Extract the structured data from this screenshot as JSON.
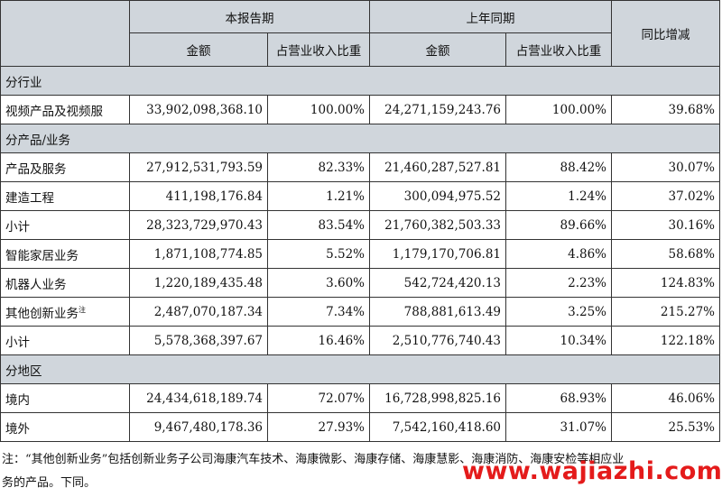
{
  "header": {
    "current_period": "本报告期",
    "prior_period": "上年同期",
    "yoy_change": "同比增减",
    "amount": "金额",
    "ratio": "占营业收入比重"
  },
  "sections": [
    {
      "title": "分行业",
      "rows": [
        {
          "label": "视频产品及视频服",
          "cur_amount": "33,902,098,368.10",
          "cur_ratio": "100.00%",
          "prev_amount": "24,271,159,243.76",
          "prev_ratio": "100.00%",
          "change": "39.68%"
        }
      ]
    },
    {
      "title": "分产品/业务",
      "rows": [
        {
          "label": "产品及服务",
          "cur_amount": "27,912,531,793.59",
          "cur_ratio": "82.33%",
          "prev_amount": "21,460,287,527.81",
          "prev_ratio": "88.42%",
          "change": "30.07%"
        },
        {
          "label": "建造工程",
          "cur_amount": "411,198,176.84",
          "cur_ratio": "1.21%",
          "prev_amount": "300,094,975.52",
          "prev_ratio": "1.24%",
          "change": "37.02%"
        },
        {
          "label": "小计",
          "cur_amount": "28,323,729,970.43",
          "cur_ratio": "83.54%",
          "prev_amount": "21,760,382,503.33",
          "prev_ratio": "89.66%",
          "change": "30.16%"
        },
        {
          "label": "智能家居业务",
          "cur_amount": "1,871,108,774.85",
          "cur_ratio": "5.52%",
          "prev_amount": "1,179,170,706.81",
          "prev_ratio": "4.86%",
          "change": "58.68%"
        },
        {
          "label": "机器人业务",
          "cur_amount": "1,220,189,435.48",
          "cur_ratio": "3.60%",
          "prev_amount": "542,724,420.13",
          "prev_ratio": "2.23%",
          "change": "124.83%"
        },
        {
          "label": "其他创新业务",
          "note": "注",
          "cur_amount": "2,487,070,187.34",
          "cur_ratio": "7.34%",
          "prev_amount": "788,881,613.49",
          "prev_ratio": "3.25%",
          "change": "215.27%"
        },
        {
          "label": "小计",
          "cur_amount": "5,578,368,397.67",
          "cur_ratio": "16.46%",
          "prev_amount": "2,510,776,740.43",
          "prev_ratio": "10.34%",
          "change": "122.18%"
        }
      ]
    },
    {
      "title": "分地区",
      "rows": [
        {
          "label": "境内",
          "cur_amount": "24,434,618,189.74",
          "cur_ratio": "72.07%",
          "prev_amount": "16,728,998,825.16",
          "prev_ratio": "68.93%",
          "change": "46.06%"
        },
        {
          "label": "境外",
          "cur_amount": "9,467,480,178.36",
          "cur_ratio": "27.93%",
          "prev_amount": "7,542,160,418.60",
          "prev_ratio": "31.07%",
          "change": "25.53%"
        }
      ]
    }
  ],
  "footnote": {
    "line1": "注：“其他创新业务”包括创新业务子公司海康汽车技术、海康微影、海康存储、海康慧影、海康消防、海康安检等相应业",
    "line2": "务的产品。下同。"
  },
  "watermark": "www.wajiazhi.com",
  "colors": {
    "header_bg": "#d0d6dc",
    "watermark": "#e41b1b",
    "border": "#333333"
  }
}
